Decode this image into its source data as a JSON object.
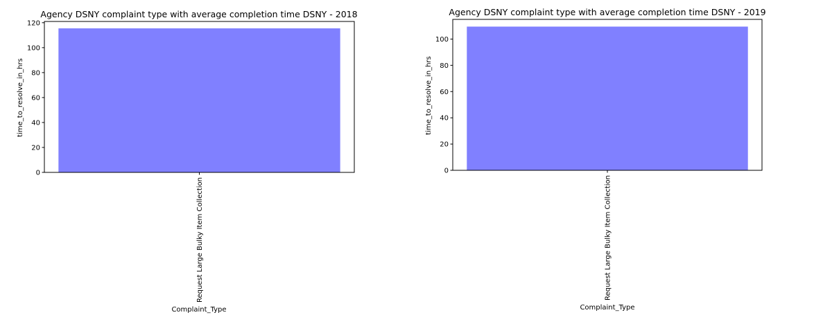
{
  "chart_data": [
    {
      "type": "bar",
      "title": "Agency DSNY complaint type with average completion time DSNY - 2018",
      "xlabel": "Complaint_Type",
      "ylabel": "time_to_resolve_in_hrs",
      "categories": [
        "Request Large Bulky Item Collection"
      ],
      "values": [
        115.5
      ],
      "ylim": [
        0,
        121
      ],
      "yticks": [
        0,
        20,
        40,
        60,
        80,
        100,
        120
      ],
      "bar_color": "#8080ff",
      "grid": false,
      "legend": "none"
    },
    {
      "type": "bar",
      "title": "Agency DSNY complaint type with average completion time DSNY - 2019",
      "xlabel": "Complaint_Type",
      "ylabel": "time_to_resolve_in_hrs",
      "categories": [
        "Request Large Bulky Item Collection"
      ],
      "values": [
        109.5
      ],
      "ylim": [
        0,
        115
      ],
      "yticks": [
        0,
        20,
        40,
        60,
        80,
        100
      ],
      "bar_color": "#8080ff",
      "grid": false,
      "legend": "none"
    }
  ]
}
